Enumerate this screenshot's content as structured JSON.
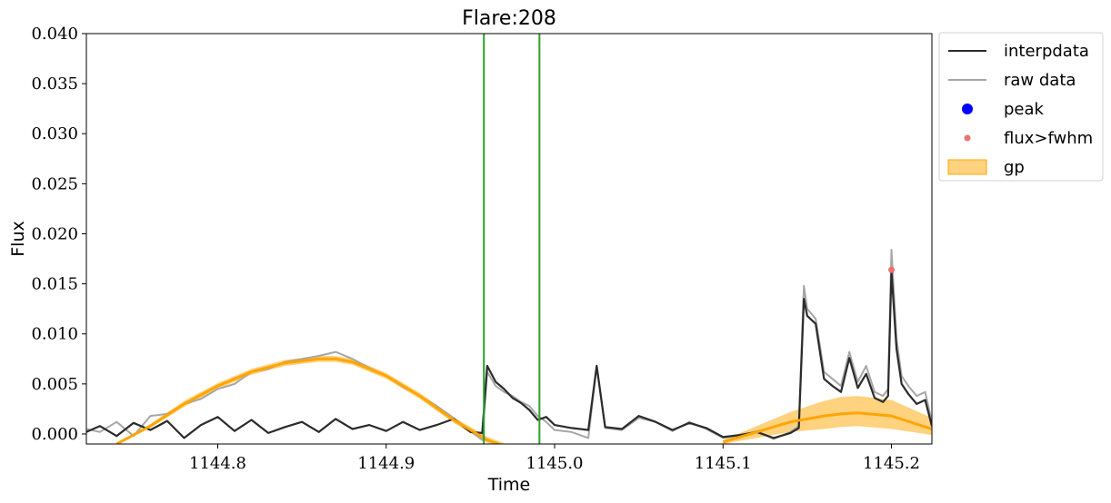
{
  "chart_data": {
    "type": "line",
    "title": "Flare:208",
    "xlabel": "Time",
    "ylabel": "Flux",
    "xlim": [
      1144.722,
      1145.224
    ],
    "ylim": [
      -0.001,
      0.04
    ],
    "xticks": [
      1144.8,
      1144.9,
      1145.0,
      1145.1,
      1145.2
    ],
    "xtick_labels": [
      "1144.8",
      "1144.9",
      "1145.0",
      "1145.1",
      "1145.2"
    ],
    "yticks": [
      0.0,
      0.005,
      0.01,
      0.015,
      0.02,
      0.025,
      0.03,
      0.035,
      0.04
    ],
    "ytick_labels": [
      "0.000",
      "0.005",
      "0.010",
      "0.015",
      "0.020",
      "0.025",
      "0.030",
      "0.035",
      "0.040"
    ],
    "grid": false,
    "legend_position": "outside-upper-right",
    "vlines": [
      {
        "x": 1144.958,
        "color": "#2ca02c"
      },
      {
        "x": 1144.991,
        "color": "#2ca02c"
      }
    ],
    "series": [
      {
        "name": "raw data",
        "kind": "line",
        "color": "#a6a6a6",
        "x": [
          1144.722,
          1144.73,
          1144.74,
          1144.75,
          1144.76,
          1144.77,
          1144.78,
          1144.79,
          1144.8,
          1144.81,
          1144.82,
          1144.83,
          1144.84,
          1144.85,
          1144.86,
          1144.87,
          1144.88,
          1144.89,
          1144.9,
          1144.91,
          1144.92,
          1144.93,
          1144.94,
          1144.95,
          1144.957,
          1144.96,
          1144.965,
          1144.97,
          1144.975,
          1144.98,
          1144.985,
          1144.99,
          1144.995,
          1145.0,
          1145.01,
          1145.02,
          1145.025,
          1145.03,
          1145.04,
          1145.05,
          1145.06,
          1145.07,
          1145.08,
          1145.09,
          1145.1,
          1145.11,
          1145.12,
          1145.13,
          1145.14,
          1145.145,
          1145.148,
          1145.15,
          1145.155,
          1145.16,
          1145.165,
          1145.17,
          1145.175,
          1145.18,
          1145.185,
          1145.19,
          1145.195,
          1145.198,
          1145.2,
          1145.203,
          1145.206,
          1145.21,
          1145.215,
          1145.22,
          1145.224
        ],
        "y": [
          0.0005,
          0.0002,
          0.0012,
          -0.0002,
          0.0018,
          0.002,
          0.003,
          0.0035,
          0.0045,
          0.005,
          0.0062,
          0.0065,
          0.0072,
          0.0075,
          0.0078,
          0.0082,
          0.0075,
          0.0066,
          0.0058,
          0.0047,
          0.0038,
          0.0028,
          0.0016,
          0.0003,
          -0.0006,
          0.0062,
          0.0048,
          0.0042,
          0.0038,
          0.0032,
          0.0028,
          0.0018,
          0.0012,
          0.0004,
          0.0002,
          -0.0004,
          0.0068,
          0.0006,
          0.0004,
          0.0016,
          0.0012,
          0.0003,
          0.0012,
          0.0005,
          -0.0004,
          -0.0002,
          0.0003,
          -0.0005,
          0.0002,
          0.0008,
          0.0148,
          0.0125,
          0.0115,
          0.0062,
          0.0055,
          0.0048,
          0.0082,
          0.0052,
          0.0068,
          0.0042,
          0.0038,
          0.0045,
          0.0184,
          0.0095,
          0.0058,
          0.0048,
          0.0038,
          0.0042,
          0.0012
        ]
      },
      {
        "name": "interpdata",
        "kind": "line",
        "color": "#2b2b2b",
        "x": [
          1144.722,
          1144.73,
          1144.74,
          1144.75,
          1144.76,
          1144.77,
          1144.78,
          1144.79,
          1144.8,
          1144.81,
          1144.82,
          1144.83,
          1144.84,
          1144.85,
          1144.86,
          1144.87,
          1144.88,
          1144.89,
          1144.9,
          1144.91,
          1144.92,
          1144.93,
          1144.94,
          1144.95,
          1144.957,
          1144.96,
          1144.965,
          1144.97,
          1144.975,
          1144.98,
          1144.985,
          1144.99,
          1144.995,
          1145.0,
          1145.01,
          1145.02,
          1145.025,
          1145.03,
          1145.04,
          1145.05,
          1145.06,
          1145.07,
          1145.08,
          1145.09,
          1145.1,
          1145.11,
          1145.12,
          1145.13,
          1145.14,
          1145.145,
          1145.148,
          1145.15,
          1145.155,
          1145.16,
          1145.165,
          1145.17,
          1145.175,
          1145.18,
          1145.185,
          1145.19,
          1145.195,
          1145.198,
          1145.2,
          1145.203,
          1145.206,
          1145.21,
          1145.215,
          1145.22,
          1145.224
        ],
        "y": [
          0.0002,
          0.0008,
          -0.0002,
          0.0011,
          0.0004,
          0.0013,
          -0.0004,
          0.0009,
          0.0017,
          0.0003,
          0.0014,
          0.0001,
          0.0007,
          0.0012,
          0.0002,
          0.0015,
          0.0005,
          0.0009,
          0.0003,
          0.0012,
          0.0004,
          0.0009,
          0.0015,
          0.0002,
          0.0001,
          0.0068,
          0.0052,
          0.0045,
          0.0036,
          0.0031,
          0.0024,
          0.0014,
          0.0017,
          0.0009,
          0.0006,
          0.0004,
          0.0068,
          0.0007,
          0.0005,
          0.0018,
          0.0012,
          0.0004,
          0.0011,
          0.0006,
          -0.0003,
          -0.0001,
          0.0002,
          -0.0004,
          0.0001,
          0.0006,
          0.0135,
          0.0118,
          0.011,
          0.0055,
          0.0048,
          0.0042,
          0.0076,
          0.0046,
          0.006,
          0.0036,
          0.0032,
          0.0038,
          0.0163,
          0.0085,
          0.005,
          0.004,
          0.003,
          0.0034,
          0.0008
        ]
      },
      {
        "name": "gp",
        "kind": "band",
        "color": "#ffa500",
        "fill": "rgba(255,165,0,0.5)",
        "x": [
          1144.74,
          1144.76,
          1144.78,
          1144.8,
          1144.82,
          1144.84,
          1144.86,
          1144.87,
          1144.88,
          1144.9,
          1144.92,
          1144.94,
          1144.96,
          1144.97
        ],
        "y": [
          -0.001,
          0.0008,
          0.003,
          0.0048,
          0.0062,
          0.0071,
          0.0075,
          0.0075,
          0.0072,
          0.0058,
          0.0038,
          0.0014,
          -0.0006,
          -0.0012
        ],
        "lower": [
          -0.001,
          0.0006,
          0.0027,
          0.0045,
          0.0059,
          0.0068,
          0.0072,
          0.0072,
          0.0069,
          0.0055,
          0.0035,
          0.0011,
          -0.0009,
          -0.0015
        ],
        "upper": [
          -0.001,
          0.001,
          0.0033,
          0.0051,
          0.0065,
          0.0074,
          0.0078,
          0.0078,
          0.0075,
          0.0061,
          0.0041,
          0.0017,
          -0.0003,
          -0.0009
        ]
      },
      {
        "name": "gp-segment-2",
        "kind": "band",
        "color": "#ffa500",
        "fill": "rgba(255,165,0,0.5)",
        "x": [
          1145.1,
          1145.12,
          1145.14,
          1145.16,
          1145.17,
          1145.18,
          1145.2,
          1145.224
        ],
        "y": [
          -0.0008,
          0.0002,
          0.0012,
          0.0018,
          0.002,
          0.0021,
          0.0018,
          0.0005
        ],
        "lower": [
          -0.001,
          -0.0004,
          0.0002,
          0.0005,
          0.0007,
          0.0008,
          0.0005,
          -0.0001
        ],
        "upper": [
          -0.0006,
          0.0008,
          0.0022,
          0.0033,
          0.0037,
          0.0038,
          0.0034,
          0.0016
        ]
      },
      {
        "name": "peak",
        "kind": "marker",
        "color": "#0000ff",
        "x": [],
        "y": []
      },
      {
        "name": "flux>fwhm",
        "kind": "marker",
        "color": "#f07070",
        "x": [
          1145.2
        ],
        "y": [
          0.0164
        ]
      }
    ],
    "legend": [
      {
        "label": "interpdata",
        "symbol": "line",
        "color": "#2b2b2b"
      },
      {
        "label": "raw data",
        "symbol": "line",
        "color": "#a6a6a6"
      },
      {
        "label": "peak",
        "symbol": "dot-large",
        "color": "#0000ff"
      },
      {
        "label": "flux>fwhm",
        "symbol": "dot-small",
        "color": "#f07070"
      },
      {
        "label": "gp",
        "symbol": "patch",
        "color": "#ffa500"
      }
    ]
  }
}
